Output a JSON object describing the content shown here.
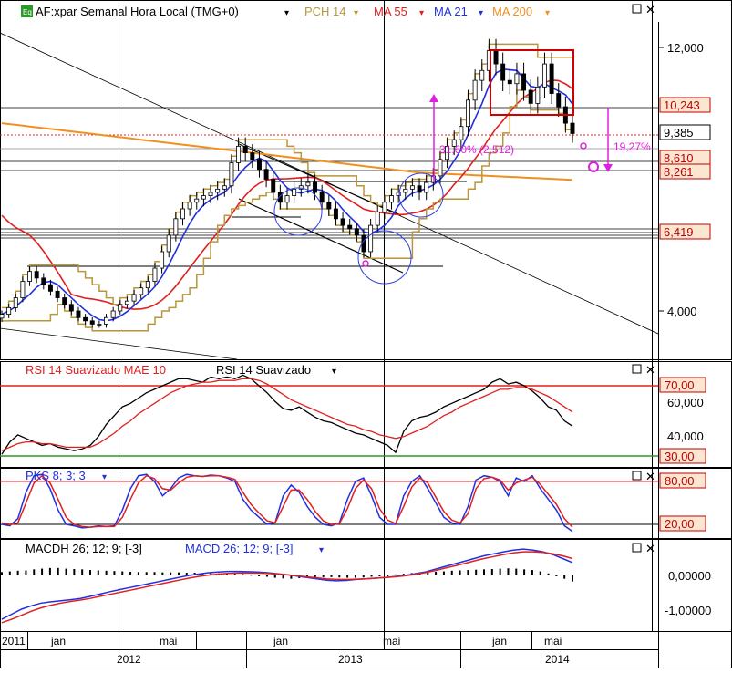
{
  "chart_data": [
    {
      "type": "candlestick",
      "panel": "price",
      "instrument_label": "AF:xpar Semanal Hora Local (TMG+0)",
      "indicators": [
        {
          "name": "PCH 14",
          "color": "#b8963a"
        },
        {
          "name": "MA 55",
          "color": "#e02020"
        },
        {
          "name": "MA 21",
          "color": "#2030e0"
        },
        {
          "name": "MA 200",
          "color": "#f09020"
        }
      ],
      "y_ticks": [
        "12,000",
        "4,000"
      ],
      "price_labels": [
        {
          "text": "10,243",
          "color": "#c00000"
        },
        {
          "text": "9,385",
          "color": "#000000"
        },
        {
          "text": "8,610",
          "color": "#c00000"
        },
        {
          "text": "8,261",
          "color": "#c00000"
        },
        {
          "text": "6,419",
          "color": "#c00000"
        }
      ],
      "annotations": [
        {
          "text": "31,60% (2,512)",
          "color": "#e020e0"
        },
        {
          "text": "19,27%",
          "color": "#e020e0"
        }
      ],
      "close_series": [
        3.9,
        4.1,
        4.4,
        4.9,
        5.2,
        5.0,
        4.8,
        4.6,
        4.4,
        4.2,
        4.0,
        3.8,
        3.7,
        3.6,
        3.6,
        3.8,
        4.0,
        4.2,
        4.3,
        4.5,
        4.7,
        4.9,
        5.3,
        5.8,
        6.3,
        6.8,
        7.1,
        7.3,
        7.4,
        7.5,
        7.6,
        7.7,
        7.8,
        8.5,
        9.0,
        8.8,
        8.6,
        8.3,
        8.0,
        7.6,
        7.3,
        7.5,
        7.7,
        7.8,
        7.9,
        7.6,
        7.3,
        7.1,
        6.8,
        6.6,
        6.5,
        6.3,
        5.8,
        6.6,
        7.0,
        7.3,
        7.5,
        7.6,
        7.7,
        7.8,
        7.6,
        7.9,
        8.1,
        8.6,
        9.0,
        9.2,
        9.6,
        10.4,
        11.0,
        11.3,
        11.9,
        11.5,
        11.0,
        10.9,
        11.2,
        10.7,
        10.3,
        10.8,
        11.5,
        10.6,
        10.2,
        9.7,
        9.385
      ]
    },
    {
      "type": "line",
      "panel": "rsi",
      "title": "RSI 14 Suavizado MAE 10",
      "subtitle": "RSI 14 Suavizado",
      "levels": [
        "70,00",
        "30,00"
      ],
      "y_ticks": [
        "60,000",
        "40,000"
      ],
      "series": [
        {
          "name": "RSI 14 Suavizado",
          "color": "#000000",
          "values": [
            31,
            38,
            42,
            40,
            38,
            36,
            37,
            35,
            34,
            33,
            34,
            36,
            41,
            48,
            53,
            58,
            60,
            63,
            66,
            68,
            70,
            72,
            74,
            74,
            73,
            72,
            75,
            74,
            75,
            74,
            76,
            74,
            70,
            66,
            61,
            57,
            56,
            58,
            55,
            52,
            50,
            49,
            47,
            45,
            43,
            42,
            40,
            38,
            36,
            32,
            44,
            50,
            52,
            53,
            55,
            58,
            60,
            62,
            64,
            66,
            68,
            72,
            74,
            71,
            72,
            70,
            67,
            63,
            58,
            56,
            50,
            47
          ]
        },
        {
          "name": "MAE 10",
          "color": "#e02020",
          "values": [
            33,
            35,
            37,
            38,
            38,
            37,
            37,
            36,
            35,
            35,
            35,
            35,
            37,
            40,
            43,
            47,
            50,
            54,
            57,
            60,
            63,
            66,
            68,
            70,
            71,
            72,
            72,
            73,
            73,
            73,
            74,
            74,
            73,
            71,
            68,
            65,
            62,
            60,
            58,
            56,
            54,
            52,
            50,
            48,
            47,
            45,
            44,
            42,
            41,
            40,
            41,
            43,
            45,
            47,
            50,
            53,
            55,
            58,
            60,
            62,
            64,
            66,
            68,
            68,
            69,
            69,
            68,
            66,
            64,
            61,
            58,
            55
          ]
        }
      ]
    },
    {
      "type": "line",
      "panel": "stochastic",
      "title": "PKS 8; 3; 3",
      "levels": [
        "80,00",
        "20,00"
      ],
      "series": [
        {
          "name": "PKS 8; 3; 3 %K",
          "color": "#2030e0",
          "values": [
            20,
            18,
            28,
            65,
            88,
            90,
            70,
            40,
            20,
            18,
            15,
            16,
            18,
            17,
            18,
            40,
            70,
            88,
            90,
            80,
            60,
            70,
            85,
            90,
            88,
            87,
            89,
            88,
            85,
            80,
            55,
            40,
            30,
            20,
            22,
            60,
            75,
            65,
            45,
            30,
            20,
            18,
            22,
            55,
            80,
            85,
            60,
            30,
            20,
            20,
            60,
            80,
            88,
            70,
            50,
            30,
            22,
            20,
            45,
            82,
            88,
            86,
            80,
            60,
            85,
            80,
            88,
            70,
            55,
            40,
            18,
            10
          ]
        },
        {
          "name": "PKS 8; 3; 3 %D",
          "color": "#e02020",
          "values": [
            22,
            20,
            22,
            50,
            78,
            88,
            78,
            55,
            30,
            20,
            17,
            16,
            17,
            17,
            17,
            30,
            55,
            78,
            88,
            84,
            70,
            68,
            78,
            86,
            88,
            87,
            88,
            88,
            86,
            83,
            65,
            48,
            36,
            25,
            22,
            45,
            68,
            68,
            55,
            38,
            25,
            20,
            21,
            42,
            70,
            82,
            70,
            42,
            26,
            21,
            45,
            72,
            85,
            78,
            58,
            38,
            26,
            22,
            35,
            70,
            84,
            86,
            82,
            68,
            78,
            82,
            86,
            76,
            62,
            48,
            28,
            16
          ]
        }
      ]
    },
    {
      "type": "bar+line",
      "panel": "macd",
      "title": "MACDH 26; 12; 9; [-3]",
      "subtitle": "MACD 26; 12; 9; [-3]",
      "y_ticks": [
        "0,00000",
        "-1,00000"
      ],
      "histogram": [
        0.1,
        0.12,
        0.14,
        0.15,
        0.18,
        0.2,
        0.22,
        0.22,
        0.2,
        0.19,
        0.18,
        0.16,
        0.15,
        0.14,
        0.13,
        0.12,
        0.11,
        0.1,
        0.1,
        0.1,
        0.09,
        0.09,
        0.09,
        0.08,
        0.08,
        0.07,
        0.07,
        0.06,
        0.06,
        0.05,
        0.04,
        0.02,
        0.0,
        -0.04,
        -0.07,
        -0.09,
        -0.1,
        -0.08,
        -0.06,
        -0.05,
        -0.05,
        -0.05,
        -0.06,
        -0.07,
        -0.07,
        -0.06,
        -0.04,
        -0.02,
        0.0,
        0.03,
        0.05,
        0.07,
        0.09,
        0.1,
        0.11,
        0.12,
        0.14,
        0.15,
        0.16,
        0.17,
        0.18,
        0.19,
        0.2,
        0.21,
        0.2,
        0.18,
        0.16,
        0.12,
        0.06,
        -0.02,
        -0.1,
        -0.18
      ],
      "series": [
        {
          "name": "MACD 26; 12; 9; [-3]",
          "color": "#2030e0",
          "values": [
            -1.3,
            -1.15,
            -1.0,
            -0.9,
            -0.82,
            -0.78,
            -0.75,
            -0.72,
            -0.68,
            -0.62,
            -0.55,
            -0.48,
            -0.42,
            -0.36,
            -0.3,
            -0.24,
            -0.18,
            -0.12,
            -0.06,
            0.0,
            0.04,
            0.08,
            0.1,
            0.12,
            0.12,
            0.11,
            0.1,
            0.08,
            0.05,
            0.02,
            -0.02,
            -0.06,
            -0.1,
            -0.14,
            -0.16,
            -0.15,
            -0.12,
            -0.1,
            -0.08,
            -0.06,
            -0.03,
            0.0,
            0.05,
            0.1,
            0.18,
            0.26,
            0.34,
            0.42,
            0.5,
            0.58,
            0.64,
            0.7,
            0.75,
            0.78,
            0.75,
            0.7,
            0.62,
            0.5,
            0.38
          ]
        },
        {
          "name": "signal",
          "color": "#e02020",
          "values": [
            -1.4,
            -1.3,
            -1.18,
            -1.06,
            -0.96,
            -0.88,
            -0.82,
            -0.77,
            -0.73,
            -0.68,
            -0.62,
            -0.56,
            -0.5,
            -0.44,
            -0.38,
            -0.32,
            -0.26,
            -0.2,
            -0.14,
            -0.08,
            -0.03,
            0.01,
            0.04,
            0.06,
            0.07,
            0.07,
            0.07,
            0.06,
            0.04,
            0.02,
            -0.01,
            -0.04,
            -0.07,
            -0.1,
            -0.12,
            -0.12,
            -0.11,
            -0.1,
            -0.08,
            -0.06,
            -0.04,
            -0.01,
            0.03,
            0.08,
            0.14,
            0.21,
            0.28,
            0.35,
            0.43,
            0.5,
            0.56,
            0.62,
            0.67,
            0.7,
            0.7,
            0.68,
            0.64,
            0.58,
            0.5
          ]
        }
      ]
    }
  ],
  "time_axis": {
    "months": [
      "2011",
      "jan",
      "mai",
      "jan",
      "mai",
      "jan",
      "mai"
    ],
    "years": [
      "2012",
      "2013",
      "2014"
    ]
  },
  "window_controls": {
    "maximize_icon": "square-icon",
    "close_icon": "x-icon"
  }
}
